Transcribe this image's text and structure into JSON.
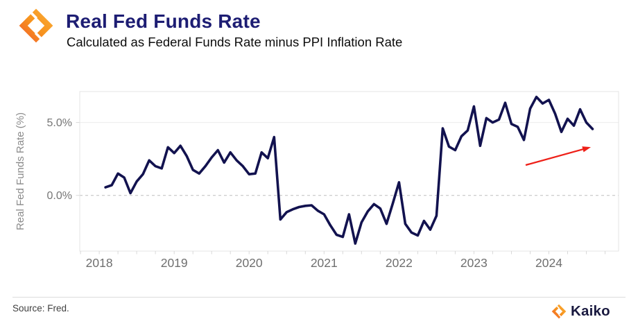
{
  "header": {
    "title": "Real Fed Funds Rate",
    "subtitle": "Calculated as Federal Funds Rate minus PPI Inflation Rate"
  },
  "footer": {
    "source": "Source: Fred.",
    "brand": "Kaiko"
  },
  "colors": {
    "line": "#12124f",
    "title_navy": "#1d1d73",
    "brand_navy": "#19193f",
    "arrow_red": "#ee2018",
    "grid_solid": "#ececec",
    "grid_dashed": "#bdbdbd",
    "axis_text": "#757575",
    "plot_border": "#e4e4e4",
    "logo_orange_dark": "#F1592B",
    "logo_orange_mid": "#F7941E",
    "logo_orange_light": "#FBB03B"
  },
  "chart_data": {
    "type": "line",
    "title": "Real Fed Funds Rate",
    "ylabel": "Real Fed Funds Rate (%)",
    "frequency": "monthly",
    "start_year": 2018,
    "start_month": 2,
    "end_label": "2024-08",
    "x_ticks": [
      2018,
      2019,
      2020,
      2021,
      2022,
      2023,
      2024
    ],
    "y_ticks": [
      {
        "value": 5,
        "label": "5.0%",
        "style": "solid"
      },
      {
        "value": 0,
        "label": "0.0%",
        "style": "dashed"
      }
    ],
    "x_range": [
      2017.74,
      2024.93
    ],
    "y_range": [
      -3.82,
      7.12
    ],
    "grid": "horizontal-only",
    "legend": "none",
    "values": [
      0.55,
      0.7,
      1.5,
      1.22,
      0.15,
      0.95,
      1.45,
      2.4,
      2.0,
      1.85,
      3.3,
      2.9,
      3.4,
      2.7,
      1.75,
      1.5,
      2.0,
      2.6,
      3.1,
      2.25,
      2.95,
      2.4,
      2.0,
      1.45,
      1.5,
      2.95,
      2.55,
      4.0,
      -1.65,
      -1.15,
      -0.95,
      -0.8,
      -0.72,
      -0.68,
      -1.05,
      -1.3,
      -2.05,
      -2.7,
      -2.85,
      -1.3,
      -3.3,
      -1.85,
      -1.1,
      -0.6,
      -0.9,
      -1.95,
      -0.55,
      0.9,
      -1.95,
      -2.55,
      -2.75,
      -1.75,
      -2.35,
      -1.4,
      4.6,
      3.35,
      3.1,
      4.05,
      4.45,
      6.1,
      3.4,
      5.3,
      5.0,
      5.2,
      6.35,
      4.9,
      4.7,
      3.8,
      5.95,
      6.75,
      6.3,
      6.55,
      5.6,
      4.35,
      5.25,
      4.78,
      5.9,
      5.0,
      4.55
    ],
    "annotation_arrow": {
      "x1": 2023.69,
      "y1": 2.08,
      "x2": 2024.56,
      "y2": 3.31
    }
  }
}
